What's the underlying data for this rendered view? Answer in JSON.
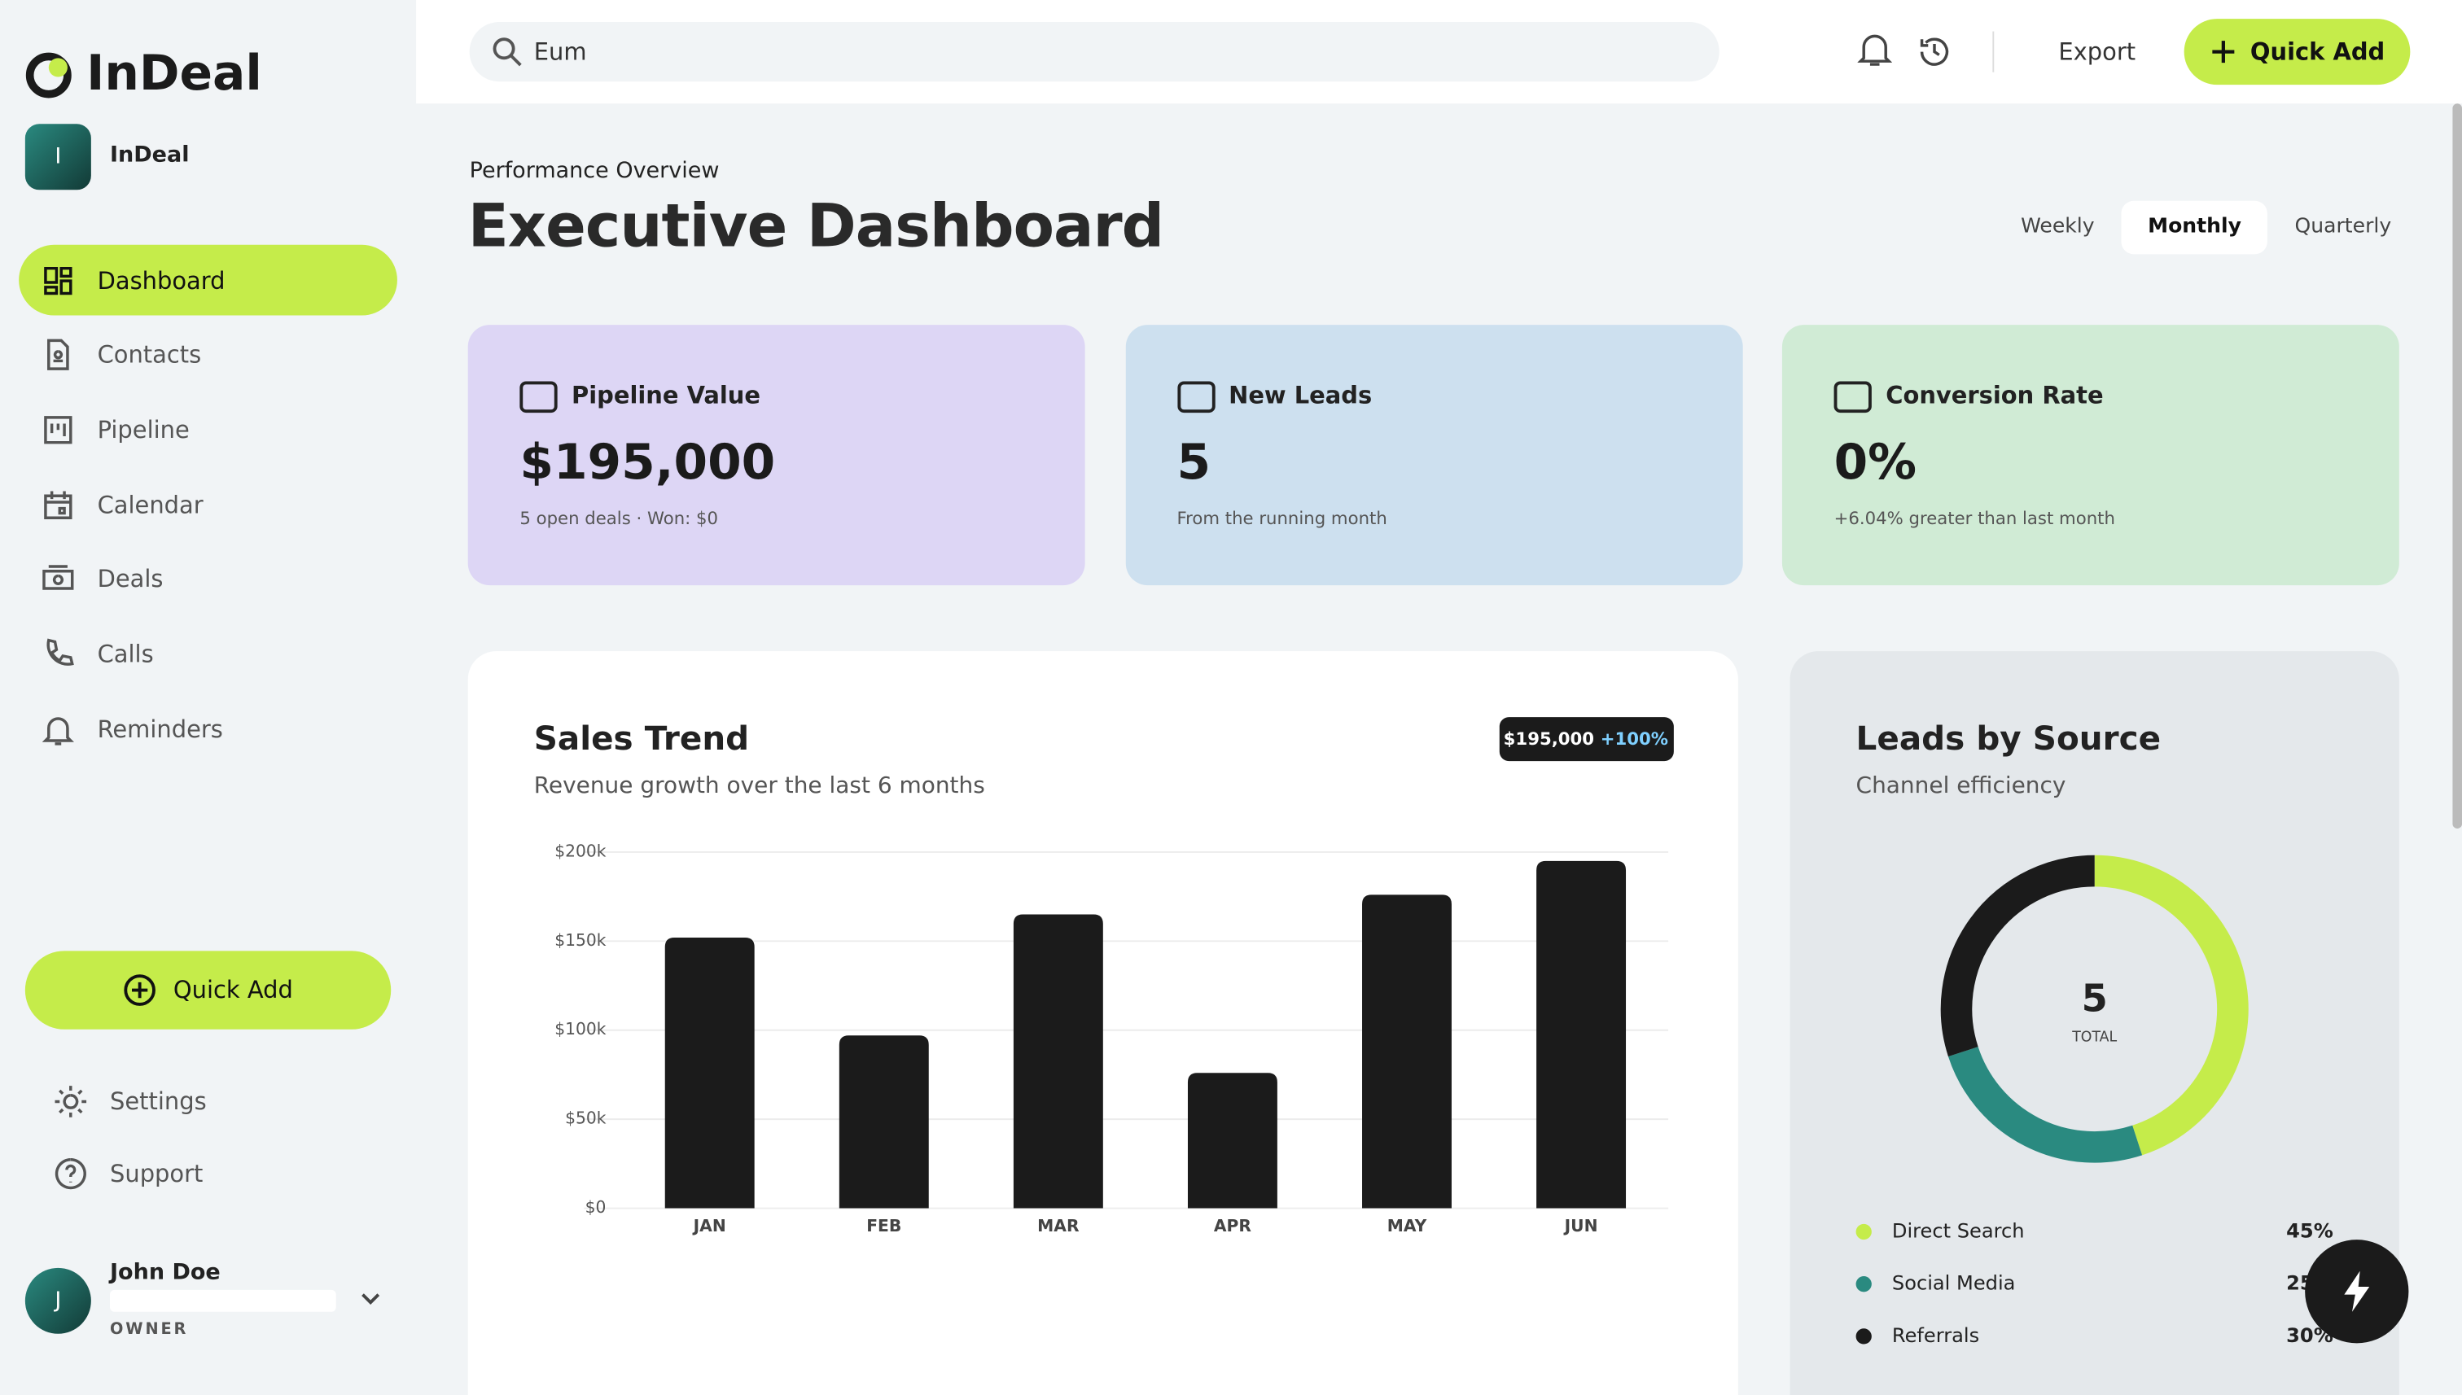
{
  "brand": {
    "name": "InDeal"
  },
  "workspace": {
    "initial": "I",
    "name": "InDeal"
  },
  "nav": [
    "Dashboard",
    "Contacts",
    "Pipeline",
    "Calendar",
    "Deals",
    "Calls",
    "Reminders"
  ],
  "sidebar_quick_add": "Quick Add",
  "footer_nav": [
    "Settings",
    "Support"
  ],
  "user": {
    "initial": "J",
    "name": "John Doe",
    "role": "OWNER"
  },
  "header": {
    "search": "Eum",
    "export": "Export",
    "quick_add": "Quick Add"
  },
  "page": {
    "eyebrow": "Performance Overview",
    "title": "Executive Dashboard",
    "periods": [
      "Weekly",
      "Monthly",
      "Quarterly"
    ]
  },
  "cards": [
    {
      "title": "Pipeline Value",
      "value": "$195,000",
      "note": "5 open deals · Won: $0"
    },
    {
      "title": "New Leads",
      "value": "5",
      "note": "From the running month"
    },
    {
      "title": "Conversion Rate",
      "value": "0%",
      "note": "+6.04% greater than last month"
    }
  ],
  "sales_trend": {
    "type": "bar",
    "title": "Sales Trend",
    "subtitle": "Revenue growth over the last 6 months",
    "badge": {
      "amount": "$195,000",
      "change": "+100%"
    },
    "categories": [
      "JAN",
      "FEB",
      "MAR",
      "APR",
      "MAY",
      "JUN"
    ],
    "values": [
      152000,
      97000,
      165000,
      76000,
      176000,
      195000
    ],
    "color": "#1b1b1b",
    "ylim": [
      0,
      200000
    ],
    "yticks": [
      {
        "value": 0,
        "label": "$0"
      },
      {
        "value": 50000,
        "label": "$50k"
      },
      {
        "value": 100000,
        "label": "$100k"
      },
      {
        "value": 150000,
        "label": "$150k"
      },
      {
        "value": 200000,
        "label": "$200k"
      }
    ],
    "grid": true
  },
  "leads_by_source": {
    "type": "pie",
    "title": "Leads by Source",
    "subtitle": "Channel efficiency",
    "total": "5",
    "total_label": "TOTAL",
    "slices": [
      {
        "name": "Direct Search",
        "value": 45,
        "label": "45%",
        "color": "#c5ec4a"
      },
      {
        "name": "Social Media",
        "value": 25,
        "label": "25%",
        "color": "#2a8a80"
      },
      {
        "name": "Referrals",
        "value": 30,
        "label": "30%",
        "color": "#1b1b1b"
      }
    ]
  }
}
